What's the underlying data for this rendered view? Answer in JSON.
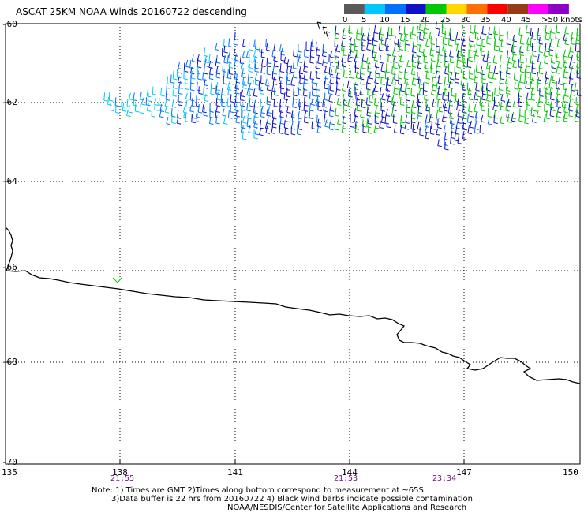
{
  "title": "ASCAT 25KM NOAA Winds 20160722 descending",
  "legend": {
    "bins": [
      {
        "label": "0",
        "color": "#5a5a5a"
      },
      {
        "label": "5",
        "color": "#00c8ff"
      },
      {
        "label": "10",
        "color": "#0070ff"
      },
      {
        "label": "15",
        "color": "#1010c8"
      },
      {
        "label": "20",
        "color": "#00c800"
      },
      {
        "label": "25",
        "color": "#ffd800"
      },
      {
        "label": "30",
        "color": "#ff7000"
      },
      {
        "label": "35",
        "color": "#ff0000"
      },
      {
        "label": "40",
        "color": "#963c14"
      },
      {
        "label": "45",
        "color": "#ff00ff"
      },
      {
        "label": ">50 knots",
        "color": "#8c00c8"
      }
    ]
  },
  "axes": {
    "lat_labels": [
      "-60",
      "-62",
      "-64",
      "-66",
      "-68",
      "-70"
    ],
    "lon_labels": [
      "135",
      "138",
      "141",
      "144",
      "147",
      "150"
    ],
    "time_labels": [
      "21:55",
      "21:53",
      "23:34"
    ]
  },
  "notes": {
    "line1": "Note: 1) Times are GMT 2)Times along bottom correspond to measurement at ~65S",
    "line2": "3)Data buffer is 22 hrs from 20160722 4) Black wind barbs indicate possible contamination",
    "line3": "NOAA/NESDIS/Center for Satellite Applications and Research"
  }
}
